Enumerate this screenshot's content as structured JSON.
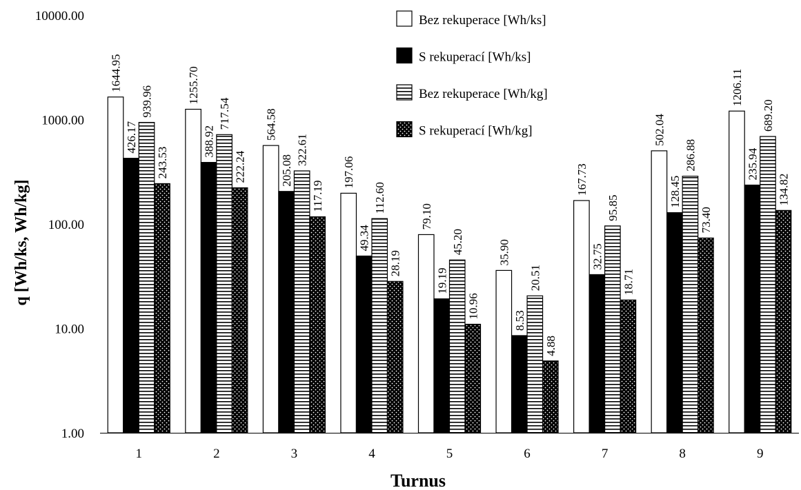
{
  "chart_data": {
    "type": "bar",
    "scale": "log",
    "xlabel": "Turnus",
    "ylabel": "q [Wh/ks, Wh/kg]",
    "ylim": [
      1,
      10000
    ],
    "yticks": [
      "1.00",
      "10.00",
      "100.00",
      "1000.00",
      "10000.00"
    ],
    "grid": false,
    "legend_position": "top-right",
    "categories": [
      "1",
      "2",
      "3",
      "4",
      "5",
      "6",
      "7",
      "8",
      "9"
    ],
    "series": [
      {
        "name": "Bez rekuperace [Wh/ks]",
        "pattern": "white",
        "values": [
          1644.95,
          1255.7,
          564.58,
          197.06,
          79.1,
          35.9,
          167.73,
          502.04,
          1206.11
        ],
        "labels": [
          "1644.95",
          "1255.70",
          "564.58",
          "197.06",
          "79.10",
          "35.90",
          "167.73",
          "502.04",
          "1206.11"
        ]
      },
      {
        "name": "S rekuperací [Wh/ks]",
        "pattern": "black",
        "values": [
          426.17,
          388.92,
          205.08,
          49.34,
          19.19,
          8.53,
          32.75,
          128.45,
          235.94
        ],
        "labels": [
          "426.17",
          "388.92",
          "205.08",
          "49.34",
          "19.19",
          "8.53",
          "32.75",
          "128.45",
          "235.94"
        ]
      },
      {
        "name": "Bez rekuperace [Wh/kg]",
        "pattern": "stripes",
        "values": [
          939.96,
          717.54,
          322.61,
          112.6,
          45.2,
          20.51,
          95.85,
          286.88,
          689.2
        ],
        "labels": [
          "939.96",
          "717.54",
          "322.61",
          "112.60",
          "45.20",
          "20.51",
          "95.85",
          "286.88",
          "689.20"
        ]
      },
      {
        "name": "S rekuperací [Wh/kg]",
        "pattern": "dots",
        "values": [
          243.53,
          222.24,
          117.19,
          28.19,
          10.96,
          4.88,
          18.71,
          73.4,
          134.82
        ],
        "labels": [
          "243.53",
          "222.24",
          "117.19",
          "28.19",
          "10.96",
          "4.88",
          "18.71",
          "73.40",
          "134.82"
        ]
      }
    ]
  }
}
